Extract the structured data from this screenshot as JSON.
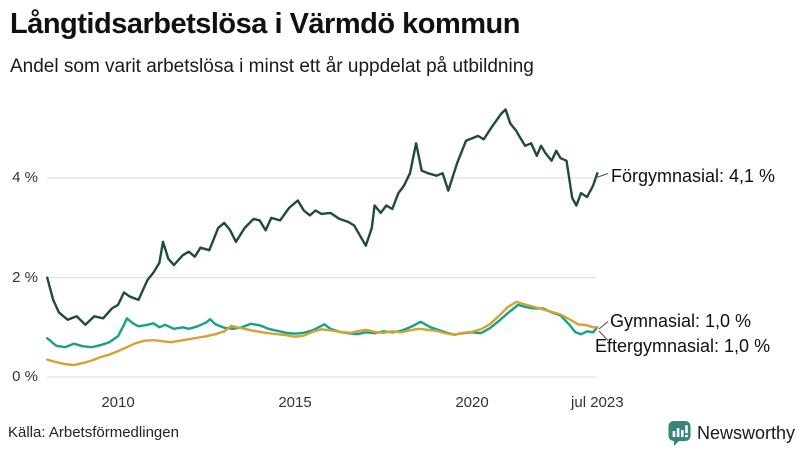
{
  "header": {
    "title": "Långtidsarbetslösa i Värmdö kommun",
    "subtitle": "Andel som varit arbetslösa i minst ett år uppdelat på utbildning"
  },
  "footer": {
    "source": "Källa: Arbetsförmedlingen",
    "brand_name": "Newsworthy"
  },
  "colors": {
    "brand_teal": "#35857a",
    "grid": "#e2e2e2",
    "tick_text": "#333333",
    "annotation_connector": "#555555",
    "series_forgymnasial": "#1f4a40",
    "series_gymnasial": "#17a189",
    "series_eftergymnasial": "#d5a234"
  },
  "chart_data": {
    "type": "line",
    "title": "Långtidsarbetslösa i Värmdö kommun",
    "xlabel": "",
    "ylabel": "",
    "unit": "%",
    "x_range": [
      2008.0,
      2023.54
    ],
    "ylim": [
      0,
      5.6
    ],
    "grid": "horizontal",
    "legend_position": "end-of-line-annotations",
    "y_ticks": [
      {
        "value": 0,
        "label": "0 %"
      },
      {
        "value": 2,
        "label": "2 %"
      },
      {
        "value": 4,
        "label": "4 %"
      }
    ],
    "x_ticks": [
      {
        "year": 2010,
        "label": "2010"
      },
      {
        "year": 2015,
        "label": "2015"
      },
      {
        "year": 2020,
        "label": "2020"
      },
      {
        "year": 2023.54,
        "label": "jul 2023"
      }
    ],
    "series": [
      {
        "name": "Förgymnasial",
        "end_label": "Förgymnasial: 4,1 %",
        "end_value": "4,1 %",
        "color": "#1f4a40",
        "points": [
          [
            2008.0,
            2.0
          ],
          [
            2008.17,
            1.55
          ],
          [
            2008.33,
            1.3
          ],
          [
            2008.58,
            1.15
          ],
          [
            2008.83,
            1.22
          ],
          [
            2009.08,
            1.05
          ],
          [
            2009.33,
            1.22
          ],
          [
            2009.58,
            1.18
          ],
          [
            2009.83,
            1.38
          ],
          [
            2010.0,
            1.45
          ],
          [
            2010.17,
            1.7
          ],
          [
            2010.33,
            1.62
          ],
          [
            2010.58,
            1.55
          ],
          [
            2010.83,
            1.95
          ],
          [
            2011.0,
            2.1
          ],
          [
            2011.17,
            2.3
          ],
          [
            2011.27,
            2.72
          ],
          [
            2011.42,
            2.38
          ],
          [
            2011.58,
            2.25
          ],
          [
            2011.83,
            2.45
          ],
          [
            2012.0,
            2.52
          ],
          [
            2012.17,
            2.42
          ],
          [
            2012.33,
            2.6
          ],
          [
            2012.58,
            2.55
          ],
          [
            2012.83,
            3.0
          ],
          [
            2013.0,
            3.1
          ],
          [
            2013.17,
            2.95
          ],
          [
            2013.33,
            2.72
          ],
          [
            2013.58,
            3.0
          ],
          [
            2013.83,
            3.18
          ],
          [
            2014.0,
            3.15
          ],
          [
            2014.17,
            2.95
          ],
          [
            2014.33,
            3.2
          ],
          [
            2014.58,
            3.15
          ],
          [
            2014.83,
            3.4
          ],
          [
            2015.08,
            3.55
          ],
          [
            2015.25,
            3.35
          ],
          [
            2015.42,
            3.25
          ],
          [
            2015.58,
            3.35
          ],
          [
            2015.75,
            3.28
          ],
          [
            2016.0,
            3.3
          ],
          [
            2016.25,
            3.18
          ],
          [
            2016.5,
            3.12
          ],
          [
            2016.67,
            3.05
          ],
          [
            2016.83,
            2.85
          ],
          [
            2017.0,
            2.64
          ],
          [
            2017.17,
            3.0
          ],
          [
            2017.25,
            3.45
          ],
          [
            2017.42,
            3.3
          ],
          [
            2017.58,
            3.45
          ],
          [
            2017.75,
            3.38
          ],
          [
            2017.92,
            3.7
          ],
          [
            2018.08,
            3.85
          ],
          [
            2018.25,
            4.1
          ],
          [
            2018.42,
            4.7
          ],
          [
            2018.58,
            4.15
          ],
          [
            2018.75,
            4.1
          ],
          [
            2019.0,
            4.05
          ],
          [
            2019.17,
            4.1
          ],
          [
            2019.33,
            3.75
          ],
          [
            2019.58,
            4.3
          ],
          [
            2019.83,
            4.75
          ],
          [
            2020.0,
            4.8
          ],
          [
            2020.17,
            4.85
          ],
          [
            2020.33,
            4.78
          ],
          [
            2020.58,
            5.05
          ],
          [
            2020.83,
            5.3
          ],
          [
            2020.95,
            5.38
          ],
          [
            2021.08,
            5.1
          ],
          [
            2021.25,
            4.95
          ],
          [
            2021.33,
            4.85
          ],
          [
            2021.5,
            4.65
          ],
          [
            2021.67,
            4.7
          ],
          [
            2021.83,
            4.45
          ],
          [
            2021.95,
            4.65
          ],
          [
            2022.08,
            4.5
          ],
          [
            2022.25,
            4.35
          ],
          [
            2022.38,
            4.55
          ],
          [
            2022.5,
            4.4
          ],
          [
            2022.67,
            4.35
          ],
          [
            2022.83,
            3.6
          ],
          [
            2022.95,
            3.45
          ],
          [
            2023.08,
            3.7
          ],
          [
            2023.25,
            3.62
          ],
          [
            2023.42,
            3.85
          ],
          [
            2023.54,
            4.1
          ]
        ]
      },
      {
        "name": "Gymnasial",
        "end_label": "Gymnasial: 1,0 %",
        "end_value": "1,0 %",
        "color": "#17a189",
        "points": [
          [
            2008.0,
            0.78
          ],
          [
            2008.25,
            0.63
          ],
          [
            2008.5,
            0.6
          ],
          [
            2008.75,
            0.67
          ],
          [
            2009.0,
            0.62
          ],
          [
            2009.25,
            0.6
          ],
          [
            2009.5,
            0.64
          ],
          [
            2009.75,
            0.7
          ],
          [
            2010.0,
            0.82
          ],
          [
            2010.17,
            1.05
          ],
          [
            2010.25,
            1.18
          ],
          [
            2010.42,
            1.08
          ],
          [
            2010.58,
            1.02
          ],
          [
            2010.83,
            1.05
          ],
          [
            2011.0,
            1.08
          ],
          [
            2011.17,
            1.0
          ],
          [
            2011.33,
            1.05
          ],
          [
            2011.58,
            0.97
          ],
          [
            2011.83,
            1.0
          ],
          [
            2012.0,
            0.97
          ],
          [
            2012.25,
            1.02
          ],
          [
            2012.5,
            1.1
          ],
          [
            2012.6,
            1.16
          ],
          [
            2012.75,
            1.06
          ],
          [
            2013.0,
            0.99
          ],
          [
            2013.25,
            0.97
          ],
          [
            2013.5,
            1.0
          ],
          [
            2013.75,
            1.07
          ],
          [
            2014.0,
            1.04
          ],
          [
            2014.25,
            0.97
          ],
          [
            2014.5,
            0.93
          ],
          [
            2014.75,
            0.89
          ],
          [
            2015.0,
            0.87
          ],
          [
            2015.25,
            0.89
          ],
          [
            2015.5,
            0.94
          ],
          [
            2015.83,
            1.06
          ],
          [
            2016.0,
            0.97
          ],
          [
            2016.25,
            0.91
          ],
          [
            2016.5,
            0.88
          ],
          [
            2016.75,
            0.86
          ],
          [
            2017.0,
            0.9
          ],
          [
            2017.25,
            0.88
          ],
          [
            2017.5,
            0.92
          ],
          [
            2017.75,
            0.9
          ],
          [
            2018.0,
            0.93
          ],
          [
            2018.25,
            1.0
          ],
          [
            2018.55,
            1.11
          ],
          [
            2018.83,
            1.0
          ],
          [
            2019.0,
            0.96
          ],
          [
            2019.25,
            0.9
          ],
          [
            2019.5,
            0.85
          ],
          [
            2019.75,
            0.88
          ],
          [
            2020.0,
            0.9
          ],
          [
            2020.25,
            0.88
          ],
          [
            2020.5,
            0.98
          ],
          [
            2020.75,
            1.12
          ],
          [
            2021.0,
            1.28
          ],
          [
            2021.3,
            1.45
          ],
          [
            2021.5,
            1.41
          ],
          [
            2021.75,
            1.38
          ],
          [
            2022.0,
            1.38
          ],
          [
            2022.25,
            1.3
          ],
          [
            2022.5,
            1.24
          ],
          [
            2022.75,
            1.05
          ],
          [
            2022.92,
            0.9
          ],
          [
            2023.08,
            0.86
          ],
          [
            2023.25,
            0.92
          ],
          [
            2023.42,
            0.9
          ],
          [
            2023.54,
            1.0
          ]
        ]
      },
      {
        "name": "Eftergymnasial",
        "end_label": "Eftergymnasial: 1,0 %",
        "end_value": "1,0 %",
        "color": "#d5a234",
        "points": [
          [
            2008.0,
            0.35
          ],
          [
            2008.25,
            0.3
          ],
          [
            2008.5,
            0.26
          ],
          [
            2008.75,
            0.24
          ],
          [
            2009.0,
            0.28
          ],
          [
            2009.25,
            0.33
          ],
          [
            2009.5,
            0.4
          ],
          [
            2009.75,
            0.45
          ],
          [
            2010.0,
            0.52
          ],
          [
            2010.25,
            0.6
          ],
          [
            2010.5,
            0.68
          ],
          [
            2010.75,
            0.73
          ],
          [
            2011.0,
            0.74
          ],
          [
            2011.25,
            0.72
          ],
          [
            2011.5,
            0.7
          ],
          [
            2011.75,
            0.73
          ],
          [
            2012.0,
            0.76
          ],
          [
            2012.25,
            0.79
          ],
          [
            2012.5,
            0.82
          ],
          [
            2012.75,
            0.86
          ],
          [
            2013.0,
            0.92
          ],
          [
            2013.2,
            1.03
          ],
          [
            2013.42,
            0.99
          ],
          [
            2013.58,
            0.97
          ],
          [
            2013.83,
            0.93
          ],
          [
            2014.0,
            0.91
          ],
          [
            2014.25,
            0.88
          ],
          [
            2014.5,
            0.86
          ],
          [
            2014.75,
            0.84
          ],
          [
            2015.0,
            0.81
          ],
          [
            2015.25,
            0.83
          ],
          [
            2015.5,
            0.91
          ],
          [
            2015.75,
            0.96
          ],
          [
            2016.0,
            0.94
          ],
          [
            2016.25,
            0.91
          ],
          [
            2016.58,
            0.89
          ],
          [
            2016.83,
            0.93
          ],
          [
            2017.0,
            0.95
          ],
          [
            2017.25,
            0.91
          ],
          [
            2017.5,
            0.89
          ],
          [
            2017.75,
            0.92
          ],
          [
            2018.0,
            0.9
          ],
          [
            2018.25,
            0.94
          ],
          [
            2018.5,
            0.97
          ],
          [
            2018.75,
            0.95
          ],
          [
            2019.0,
            0.93
          ],
          [
            2019.25,
            0.88
          ],
          [
            2019.5,
            0.85
          ],
          [
            2019.75,
            0.89
          ],
          [
            2020.0,
            0.91
          ],
          [
            2020.25,
            0.96
          ],
          [
            2020.5,
            1.06
          ],
          [
            2020.75,
            1.22
          ],
          [
            2021.0,
            1.4
          ],
          [
            2021.25,
            1.51
          ],
          [
            2021.5,
            1.46
          ],
          [
            2021.75,
            1.41
          ],
          [
            2022.0,
            1.36
          ],
          [
            2022.25,
            1.31
          ],
          [
            2022.5,
            1.26
          ],
          [
            2022.75,
            1.16
          ],
          [
            2023.0,
            1.06
          ],
          [
            2023.25,
            1.04
          ],
          [
            2023.42,
            1.0
          ],
          [
            2023.54,
            1.0
          ]
        ]
      }
    ]
  }
}
